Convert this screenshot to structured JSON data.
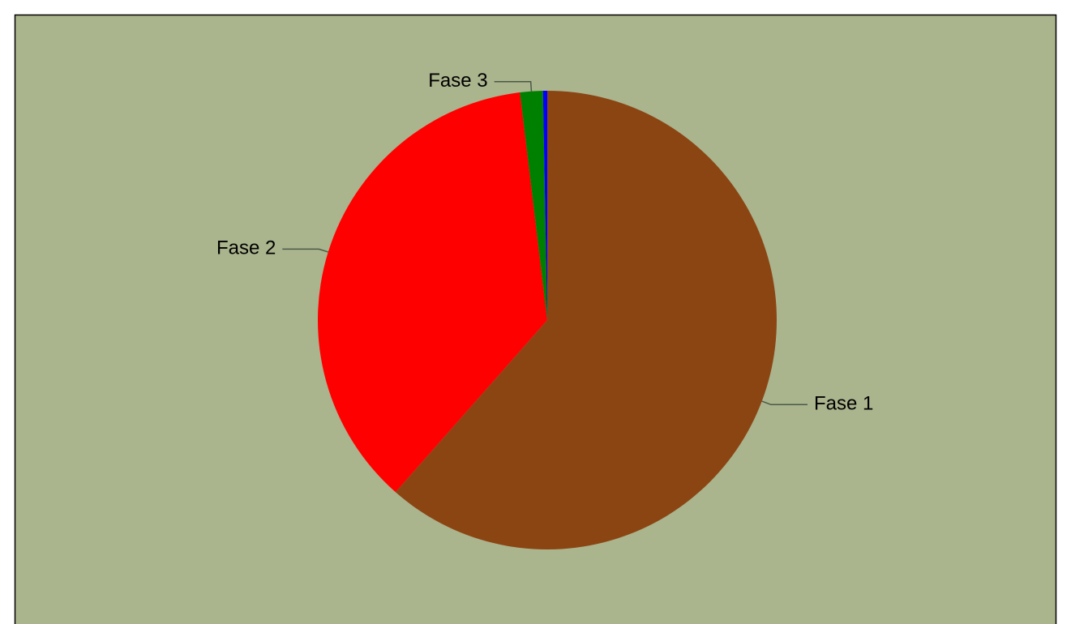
{
  "chart_data": {
    "type": "pie",
    "categories": [
      "Fase 1",
      "Fase 2",
      "Fase 3",
      null
    ],
    "values": [
      61.5,
      36.6,
      1.6,
      0.3
    ],
    "colors": [
      "#8b4513",
      "#ff0000",
      "#008000",
      "#0000ff"
    ],
    "start_angle": 0,
    "direction": "clockwise"
  }
}
